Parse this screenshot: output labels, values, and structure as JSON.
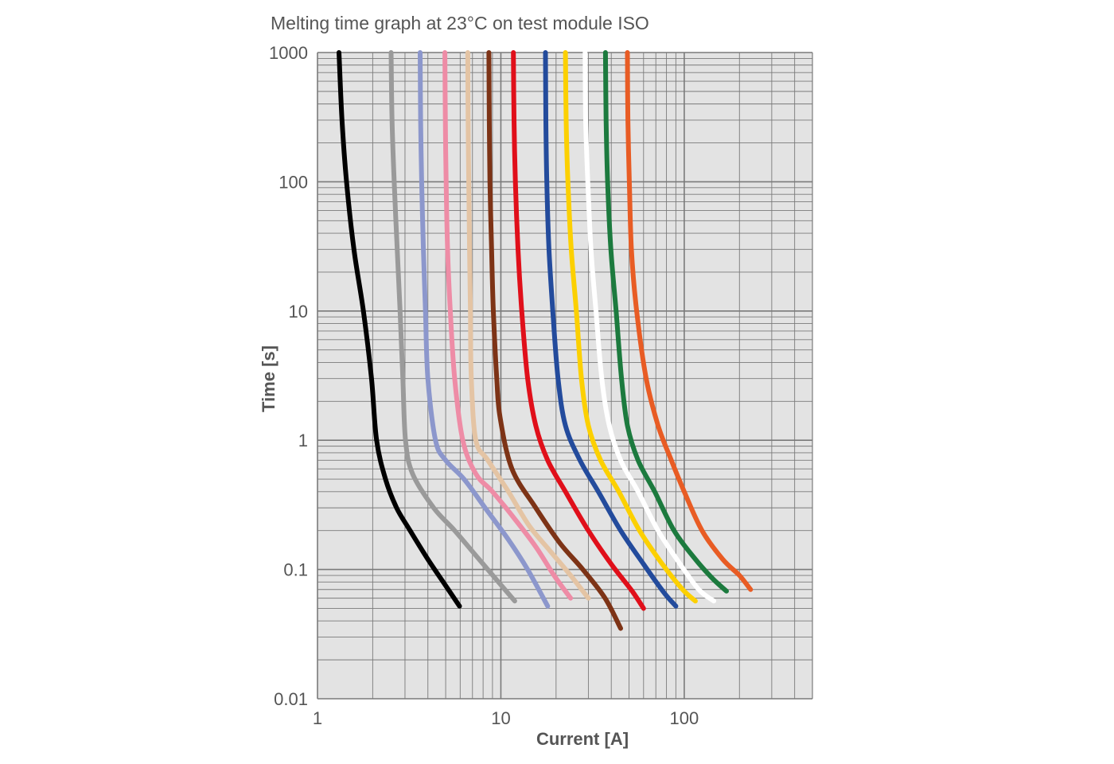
{
  "chart_data": {
    "type": "line",
    "title": "Melting time graph at 23°C on test module ISO",
    "xlabel": "Current [A]",
    "ylabel": "Time [s]",
    "x_scale": "log",
    "y_scale": "log",
    "xlim": [
      1,
      500
    ],
    "ylim": [
      0.01,
      1000
    ],
    "x_tick_labels": [
      "1",
      "10",
      "100"
    ],
    "x_tick_values": [
      1,
      10,
      100
    ],
    "y_tick_labels": [
      "1000",
      "100",
      "10",
      "1",
      "0.1",
      "0.01"
    ],
    "y_tick_values": [
      1000,
      100,
      10,
      1,
      0.1,
      0.01
    ],
    "grid": true,
    "legend": "none",
    "background_color": "#e3e3e3",
    "grid_color": "#7a7a7a",
    "series": [
      {
        "color": "#000000",
        "points": [
          [
            1.31,
            1000
          ],
          [
            1.36,
            300
          ],
          [
            1.44,
            100
          ],
          [
            1.58,
            30
          ],
          [
            1.78,
            10
          ],
          [
            1.97,
            3
          ],
          [
            2.1,
            1
          ],
          [
            2.35,
            0.5
          ],
          [
            2.7,
            0.3
          ],
          [
            3.2,
            0.2
          ],
          [
            4,
            0.12
          ],
          [
            5,
            0.075
          ],
          [
            5.95,
            0.052
          ]
        ]
      },
      {
        "color": "#9a9a9a",
        "points": [
          [
            2.52,
            1000
          ],
          [
            2.55,
            300
          ],
          [
            2.62,
            100
          ],
          [
            2.72,
            30
          ],
          [
            2.82,
            10
          ],
          [
            2.92,
            3
          ],
          [
            3.02,
            1
          ],
          [
            3.3,
            0.55
          ],
          [
            4.3,
            0.3
          ],
          [
            5.6,
            0.2
          ],
          [
            7.6,
            0.12
          ],
          [
            9.7,
            0.08
          ],
          [
            11.9,
            0.057
          ]
        ]
      },
      {
        "color": "#8c97cc",
        "points": [
          [
            3.63,
            1000
          ],
          [
            3.65,
            300
          ],
          [
            3.7,
            100
          ],
          [
            3.78,
            30
          ],
          [
            3.88,
            10
          ],
          [
            4.0,
            3
          ],
          [
            4.4,
            1
          ],
          [
            5.0,
            0.7
          ],
          [
            6.3,
            0.5
          ],
          [
            8.2,
            0.3
          ],
          [
            11,
            0.17
          ],
          [
            14,
            0.1
          ],
          [
            18,
            0.052
          ]
        ]
      },
      {
        "color": "#ee8ca6",
        "points": [
          [
            4.95,
            1000
          ],
          [
            4.98,
            300
          ],
          [
            5.03,
            100
          ],
          [
            5.12,
            30
          ],
          [
            5.3,
            10
          ],
          [
            5.6,
            3
          ],
          [
            6.2,
            1
          ],
          [
            7.3,
            0.55
          ],
          [
            9,
            0.4
          ],
          [
            11.8,
            0.25
          ],
          [
            15.5,
            0.15
          ],
          [
            19.5,
            0.09
          ],
          [
            24,
            0.06
          ]
        ]
      },
      {
        "color": "#e4c4a4",
        "points": [
          [
            6.6,
            1000
          ],
          [
            6.63,
            300
          ],
          [
            6.68,
            100
          ],
          [
            6.75,
            30
          ],
          [
            6.82,
            10
          ],
          [
            6.9,
            3
          ],
          [
            7.3,
            1
          ],
          [
            8.5,
            0.7
          ],
          [
            11,
            0.4
          ],
          [
            14.2,
            0.22
          ],
          [
            18.5,
            0.14
          ],
          [
            24,
            0.09
          ],
          [
            30,
            0.06
          ]
        ]
      },
      {
        "color": "#7d3316",
        "points": [
          [
            8.6,
            1000
          ],
          [
            8.65,
            300
          ],
          [
            8.72,
            100
          ],
          [
            8.9,
            30
          ],
          [
            9.1,
            10
          ],
          [
            9.5,
            3
          ],
          [
            9.9,
            1.5
          ],
          [
            11.5,
            0.6
          ],
          [
            15.5,
            0.3
          ],
          [
            21,
            0.16
          ],
          [
            28,
            0.1
          ],
          [
            37,
            0.06
          ],
          [
            45,
            0.035
          ]
        ]
      },
      {
        "color": "#e00f1a",
        "points": [
          [
            11.7,
            1000
          ],
          [
            11.8,
            300
          ],
          [
            12.0,
            100
          ],
          [
            12.4,
            30
          ],
          [
            13.0,
            10
          ],
          [
            14.0,
            3
          ],
          [
            15.5,
            1.3
          ],
          [
            18,
            0.7
          ],
          [
            22.5,
            0.4
          ],
          [
            30,
            0.2
          ],
          [
            40,
            0.11
          ],
          [
            52,
            0.068
          ],
          [
            60,
            0.05
          ]
        ]
      },
      {
        "color": "#234b9c",
        "points": [
          [
            17.5,
            1000
          ],
          [
            17.6,
            300
          ],
          [
            17.8,
            100
          ],
          [
            18.3,
            30
          ],
          [
            19.2,
            10
          ],
          [
            20.5,
            3
          ],
          [
            22.5,
            1.3
          ],
          [
            27,
            0.7
          ],
          [
            34,
            0.4
          ],
          [
            45,
            0.2
          ],
          [
            60,
            0.11
          ],
          [
            77,
            0.067
          ],
          [
            90,
            0.052
          ]
        ]
      },
      {
        "color": "#fcd000",
        "points": [
          [
            22.5,
            1000
          ],
          [
            22.7,
            300
          ],
          [
            23.2,
            100
          ],
          [
            24.2,
            30
          ],
          [
            25.8,
            10
          ],
          [
            27.5,
            3
          ],
          [
            30,
            1.3
          ],
          [
            35,
            0.7
          ],
          [
            44,
            0.4
          ],
          [
            57,
            0.2
          ],
          [
            76,
            0.11
          ],
          [
            98,
            0.07
          ],
          [
            115,
            0.057
          ]
        ]
      },
      {
        "color": "#ffffff",
        "points": [
          [
            28.8,
            1000
          ],
          [
            29,
            300
          ],
          [
            29.8,
            100
          ],
          [
            31,
            30
          ],
          [
            33,
            10
          ],
          [
            35.5,
            3
          ],
          [
            39,
            1.3
          ],
          [
            45,
            0.7
          ],
          [
            56,
            0.4
          ],
          [
            72,
            0.2
          ],
          [
            95,
            0.11
          ],
          [
            120,
            0.07
          ],
          [
            145,
            0.057
          ]
        ]
      },
      {
        "color": "#1c7a3e",
        "points": [
          [
            37.2,
            1000
          ],
          [
            37.5,
            300
          ],
          [
            38.2,
            100
          ],
          [
            39.8,
            30
          ],
          [
            42.5,
            10
          ],
          [
            45.5,
            3
          ],
          [
            49,
            1.3
          ],
          [
            56,
            0.7
          ],
          [
            69,
            0.4
          ],
          [
            88,
            0.2
          ],
          [
            115,
            0.12
          ],
          [
            143,
            0.085
          ],
          [
            170,
            0.068
          ]
        ]
      },
      {
        "color": "#e85c24",
        "points": [
          [
            49,
            1000
          ],
          [
            49.3,
            300
          ],
          [
            50.2,
            100
          ],
          [
            51.5,
            30
          ],
          [
            55,
            10
          ],
          [
            62,
            3
          ],
          [
            72,
            1.3
          ],
          [
            85,
            0.7
          ],
          [
            100,
            0.4
          ],
          [
            125,
            0.2
          ],
          [
            162,
            0.12
          ],
          [
            200,
            0.09
          ],
          [
            230,
            0.07
          ]
        ]
      }
    ]
  }
}
